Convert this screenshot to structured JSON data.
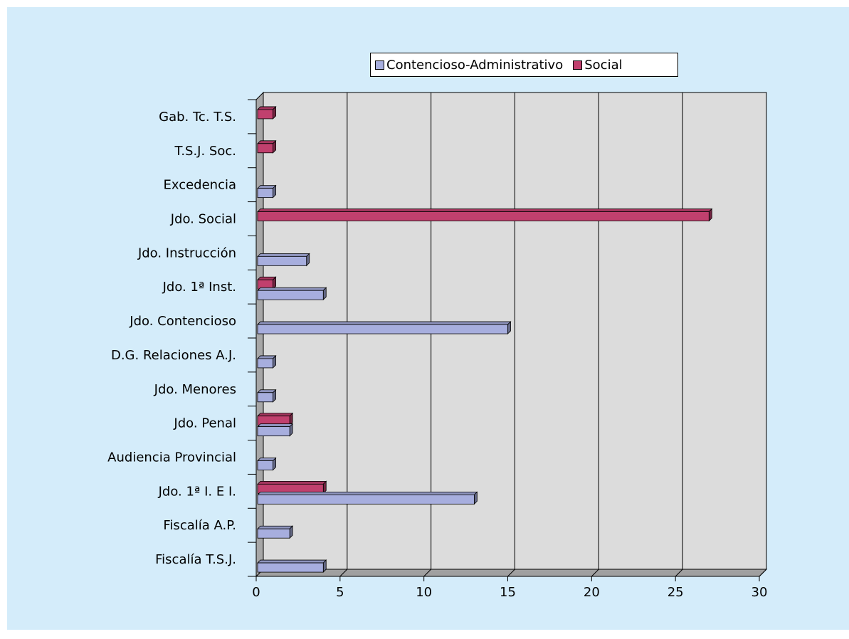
{
  "colors": {
    "background": "#d4ecfa",
    "plot_back": "#dcdcdc",
    "plot_floor": "#a0a0a0",
    "plot_side": "#a7a7a7",
    "contencioso": "#a7aede",
    "social": "#c1406e"
  },
  "legend": {
    "items": [
      {
        "label": "Contencioso-Administrativo",
        "color": "#a7aede"
      },
      {
        "label": "Social",
        "color": "#c1406e"
      }
    ]
  },
  "chart_data": {
    "type": "bar",
    "orientation": "horizontal",
    "style": "3d",
    "categories": [
      "Gab. Tc. T.S.",
      "T.S.J. Soc.",
      "Excedencia",
      "Jdo. Social",
      "Jdo. Instrucción",
      "Jdo. 1ª Inst.",
      "Jdo. Contencioso",
      "D.G. Relaciones A.J.",
      "Jdo. Menores",
      "Jdo. Penal",
      "Audiencia Provincial",
      "Jdo. 1ª I. E I.",
      "Fiscalía A.P.",
      "Fiscalía T.S.J."
    ],
    "series": [
      {
        "name": "Contencioso-Administrativo",
        "values": [
          0,
          0,
          1,
          0,
          3,
          4,
          15,
          1,
          1,
          2,
          1,
          13,
          2,
          4
        ]
      },
      {
        "name": "Social",
        "values": [
          1,
          1,
          0,
          27,
          0,
          1,
          0,
          0,
          0,
          2,
          0,
          4,
          0,
          0
        ]
      }
    ],
    "xticks": [
      "0",
      "5",
      "10",
      "15",
      "20",
      "25",
      "30"
    ],
    "xlim": [
      0,
      30
    ],
    "grid": "vertical",
    "legend_position": "top"
  }
}
